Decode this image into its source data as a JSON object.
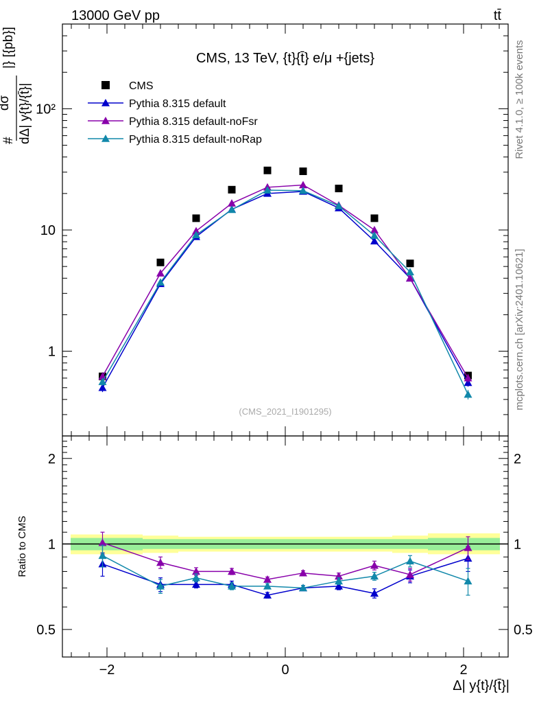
{
  "header": {
    "left": "13000 GeV pp",
    "right": "tt̄",
    "title": "CMS, 13 TeV, {t}{t̄} e/μ +{jets}",
    "watermark": "(CMS_2021_I1901295)",
    "side_top": "Rivet 4.1.0, ≥ 100k events",
    "side_bottom": "mcplots.cern.ch [arXiv:2401.10621]"
  },
  "axes": {
    "ylabel_main_num": "dσ",
    "ylabel_main_den": "dΔ| y{t}/{t̄}|",
    "ylabel_main_units": "|} [{pb}]",
    "ylabel_main_prefix": "#",
    "ylabel_ratio": "Ratio to CMS",
    "xlabel": "Δ| y{t}/{t̄}|",
    "main_yticks": [
      "1",
      "10",
      "10²"
    ],
    "ratio_yticks": [
      "0.5",
      "1",
      "2"
    ],
    "xticks": [
      "−2",
      "0",
      "2"
    ]
  },
  "chart_data": {
    "type": "scatter",
    "title": "CMS, 13 TeV, {t}{t̄} e/μ +{jets}",
    "xlabel": "Δ| y{t}/{t̄}|",
    "ylabel": "dσ/dΔ|y| [pb]",
    "xlim": [
      -2.5,
      2.5
    ],
    "ylim": [
      0.2,
      500
    ],
    "yscale": "log",
    "x": [
      -2.05,
      -1.4,
      -1.0,
      -0.6,
      -0.2,
      0.2,
      0.6,
      1.0,
      1.4,
      2.05
    ],
    "series": [
      {
        "name": "CMS",
        "color": "#000000",
        "marker": "square",
        "values": [
          0.62,
          5.4,
          12.5,
          21.5,
          31.0,
          30.5,
          22.0,
          12.5,
          5.3,
          0.63
        ]
      },
      {
        "name": "Pythia 8.315 default",
        "color": "#0000cc",
        "marker": "triangle",
        "values": [
          0.5,
          3.6,
          8.8,
          14.8,
          20.0,
          20.8,
          15.2,
          8.1,
          4.0,
          0.55
        ],
        "errors": [
          0.04,
          0.1,
          0.2,
          0.3,
          0.4,
          0.4,
          0.3,
          0.2,
          0.1,
          0.04
        ],
        "ratio": [
          0.85,
          0.72,
          0.72,
          0.72,
          0.66,
          0.7,
          0.71,
          0.67,
          0.77,
          0.89
        ],
        "ratio_err": [
          0.08,
          0.04,
          0.02,
          0.02,
          0.015,
          0.015,
          0.02,
          0.025,
          0.04,
          0.09
        ]
      },
      {
        "name": "Pythia 8.315 default-noFsr",
        "color": "#8800aa",
        "marker": "triangle",
        "values": [
          0.62,
          4.4,
          9.8,
          16.6,
          22.5,
          23.5,
          16.0,
          10.0,
          4.0,
          0.6
        ],
        "errors": [
          0.05,
          0.15,
          0.25,
          0.35,
          0.45,
          0.45,
          0.35,
          0.25,
          0.12,
          0.05
        ],
        "ratio": [
          1.01,
          0.86,
          0.8,
          0.8,
          0.75,
          0.79,
          0.77,
          0.84,
          0.78,
          0.97
        ],
        "ratio_err": [
          0.09,
          0.04,
          0.025,
          0.02,
          0.015,
          0.015,
          0.02,
          0.03,
          0.04,
          0.09
        ]
      },
      {
        "name": "Pythia 8.315 default-noRap",
        "color": "#1188aa",
        "marker": "triangle",
        "values": [
          0.56,
          3.7,
          9.1,
          14.7,
          21.3,
          21.1,
          15.8,
          9.0,
          4.5,
          0.44
        ],
        "errors": [
          0.04,
          0.12,
          0.2,
          0.3,
          0.4,
          0.4,
          0.3,
          0.2,
          0.12,
          0.04
        ],
        "ratio": [
          0.91,
          0.71,
          0.76,
          0.71,
          0.71,
          0.7,
          0.74,
          0.77,
          0.87,
          0.74
        ],
        "ratio_err": [
          0.08,
          0.04,
          0.025,
          0.02,
          0.015,
          0.015,
          0.02,
          0.025,
          0.04,
          0.08
        ]
      }
    ],
    "ratio_panel": {
      "ylabel": "Ratio to CMS",
      "ylim": [
        0.4,
        2.4
      ],
      "bands": [
        {
          "name": "total uncertainty",
          "color": "#ffff99",
          "edges": [
            -2.5,
            -1.6,
            -1.2,
            -0.8,
            -0.4,
            0.0,
            0.4,
            0.8,
            1.2,
            1.6,
            2.5
          ],
          "lo": [
            0.92,
            0.93,
            0.94,
            0.94,
            0.94,
            0.94,
            0.94,
            0.94,
            0.93,
            0.92
          ],
          "hi": [
            1.08,
            1.07,
            1.06,
            1.06,
            1.06,
            1.06,
            1.06,
            1.06,
            1.07,
            1.09
          ]
        },
        {
          "name": "stat uncertainty",
          "color": "#99ee99",
          "edges": [
            -2.5,
            -1.6,
            -1.2,
            -0.8,
            -0.4,
            0.0,
            0.4,
            0.8,
            1.2,
            1.6,
            2.5
          ],
          "lo": [
            0.95,
            0.96,
            0.96,
            0.96,
            0.96,
            0.96,
            0.96,
            0.96,
            0.96,
            0.95
          ],
          "hi": [
            1.05,
            1.04,
            1.04,
            1.04,
            1.04,
            1.04,
            1.04,
            1.04,
            1.04,
            1.05
          ]
        }
      ]
    }
  }
}
